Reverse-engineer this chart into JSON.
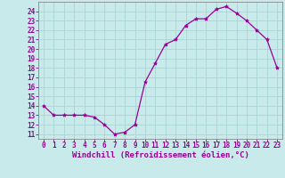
{
  "x": [
    0,
    1,
    2,
    3,
    4,
    5,
    6,
    7,
    8,
    9,
    10,
    11,
    12,
    13,
    14,
    15,
    16,
    17,
    18,
    19,
    20,
    21,
    22,
    23
  ],
  "y": [
    14,
    13,
    13,
    13,
    13,
    12.8,
    12,
    11,
    11.2,
    12,
    16.5,
    18.5,
    20.5,
    21,
    22.5,
    23.2,
    23.2,
    24.2,
    24.5,
    23.8,
    23,
    22,
    21,
    18
  ],
  "line_color": "#990099",
  "marker_color": "#990099",
  "bg_color": "#c8eaea",
  "grid_color": "#aad4d4",
  "xlabel": "Windchill (Refroidissement éolien,°C)",
  "ylabel_ticks": [
    11,
    12,
    13,
    14,
    15,
    16,
    17,
    18,
    19,
    20,
    21,
    22,
    23,
    24
  ],
  "xlim": [
    -0.5,
    23.5
  ],
  "ylim": [
    10.5,
    25.0
  ],
  "xlabel_fontsize": 6.5,
  "tick_fontsize": 5.5,
  "xlabel_color": "#990099",
  "tick_color": "#990099",
  "spine_color": "#888888"
}
